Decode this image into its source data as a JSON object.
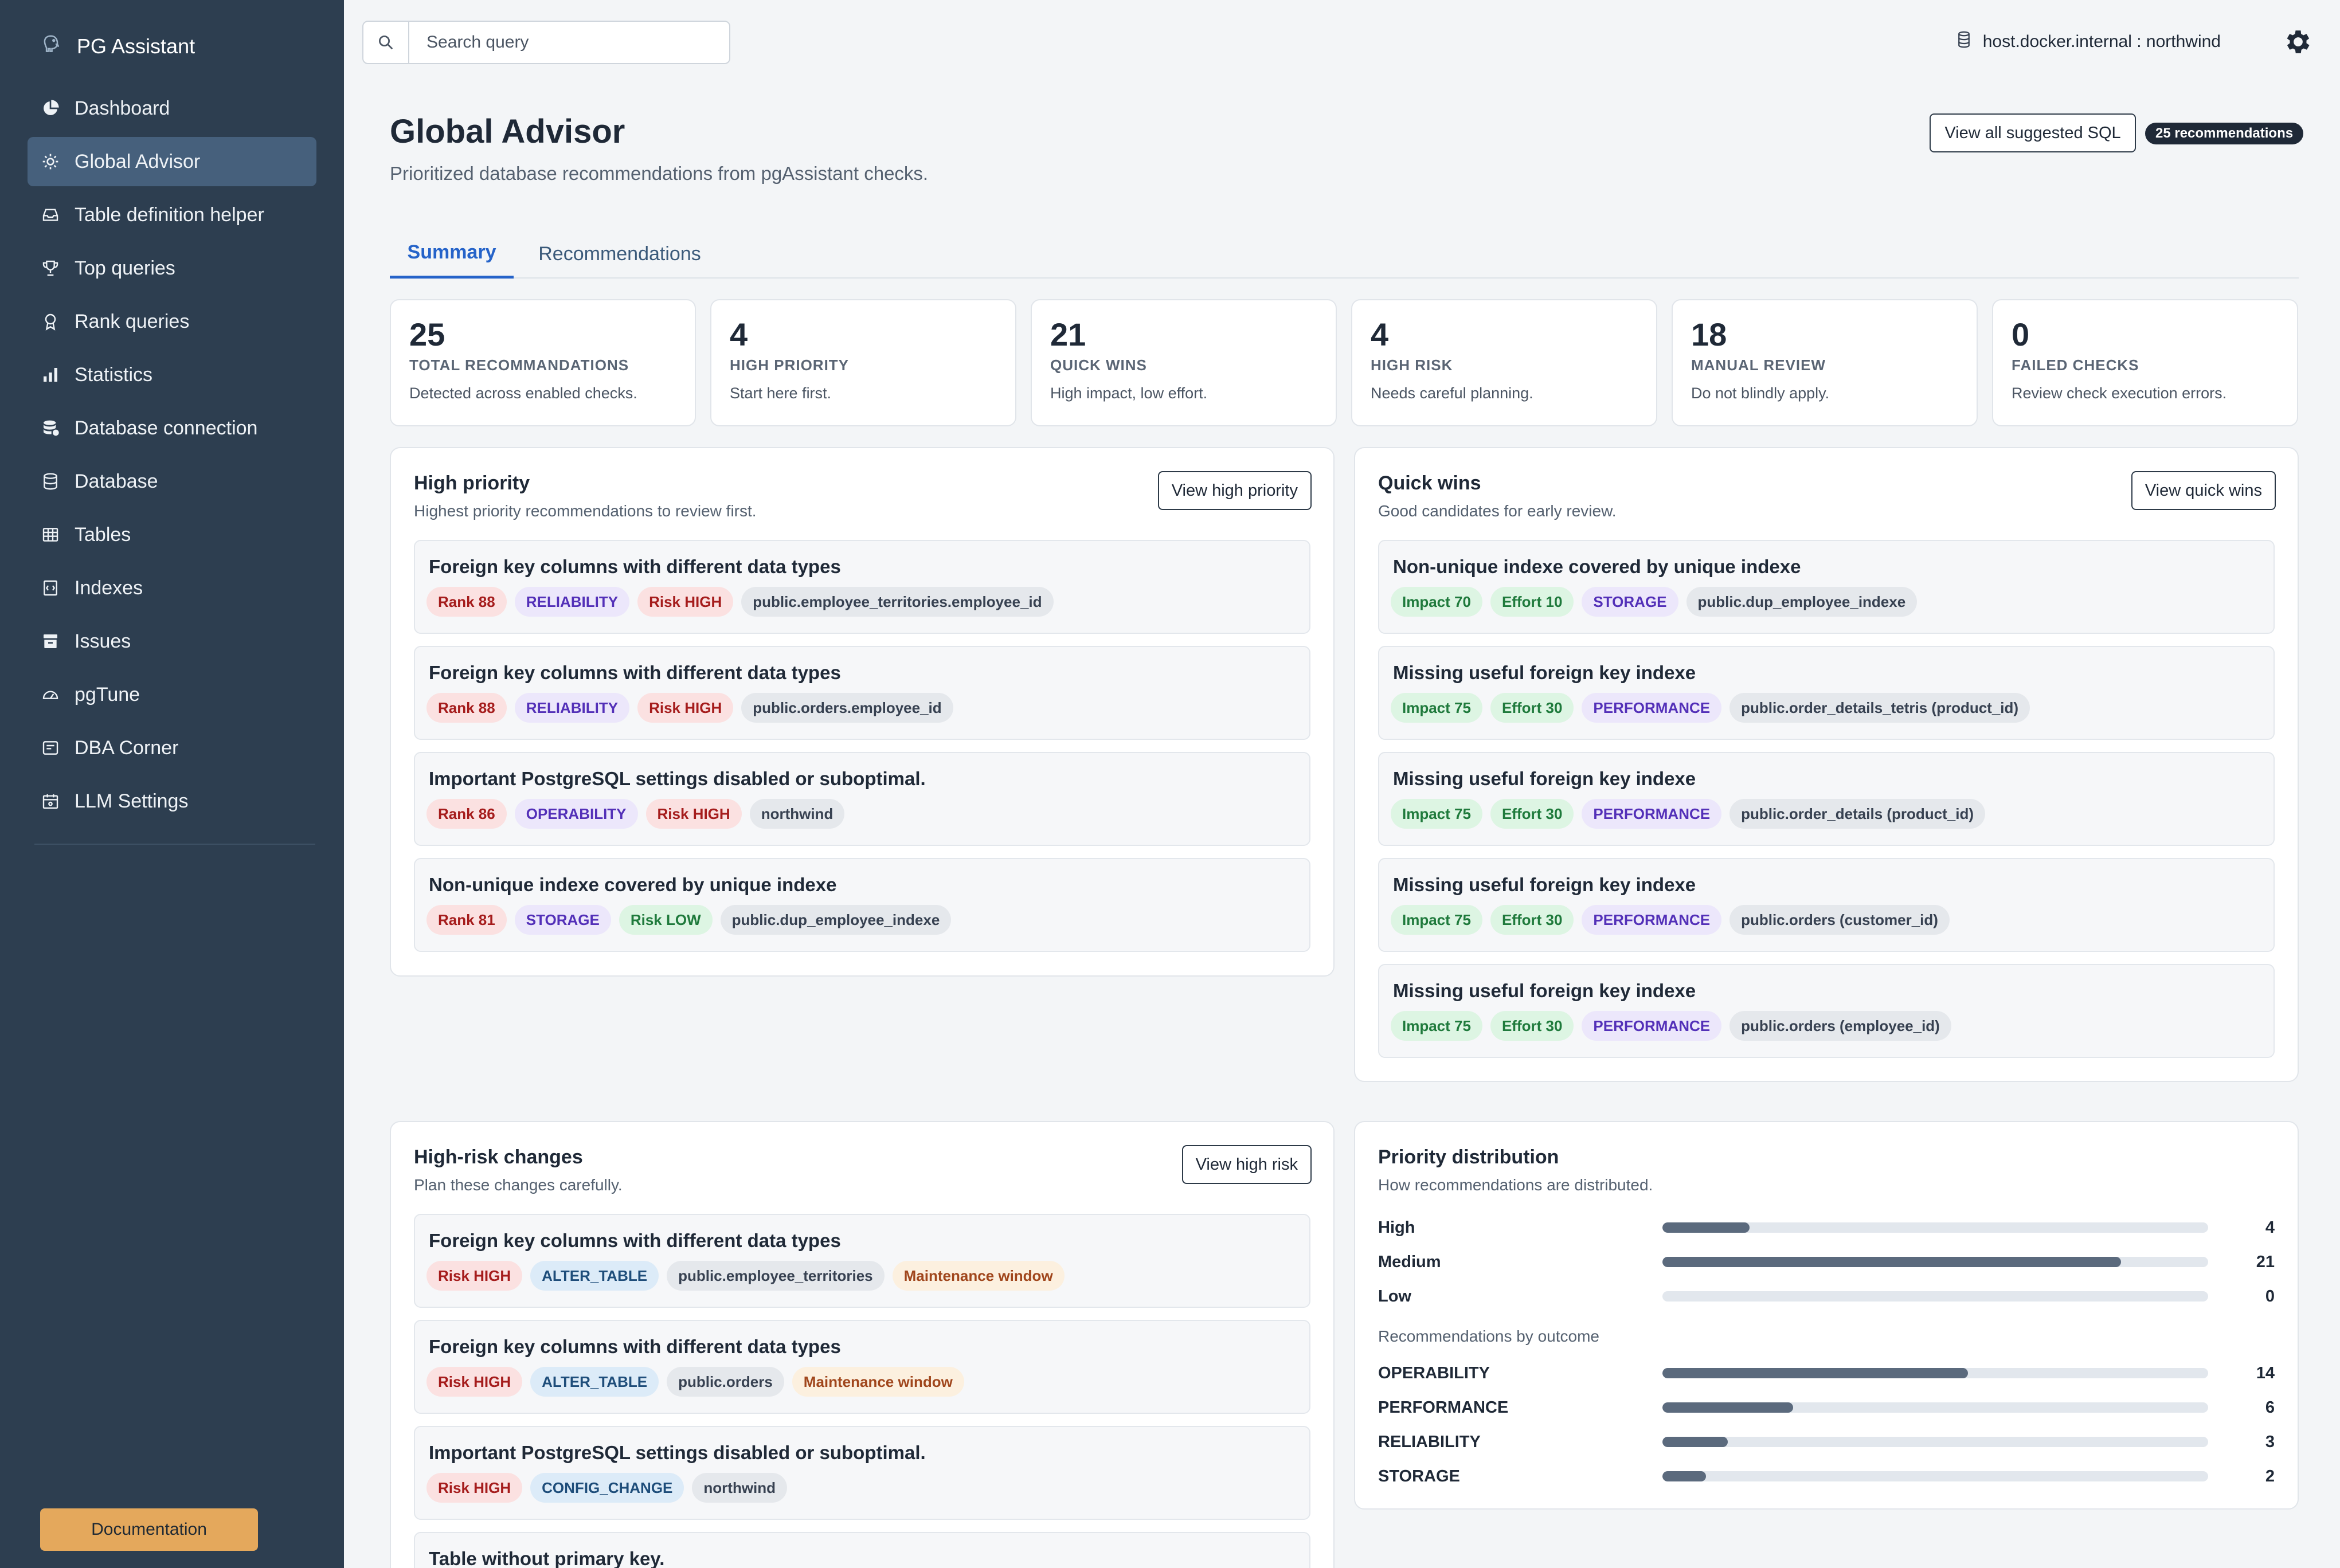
{
  "app": {
    "title": "PG Assistant"
  },
  "sidebar": {
    "items": [
      {
        "label": "Dashboard",
        "icon": "pie-chart-icon",
        "active": false
      },
      {
        "label": "Global Advisor",
        "icon": "sun-icon",
        "active": true
      },
      {
        "label": "Table definition helper",
        "icon": "inbox-icon",
        "active": false
      },
      {
        "label": "Top queries",
        "icon": "trophy-icon",
        "active": false
      },
      {
        "label": "Rank queries",
        "icon": "award-icon",
        "active": false
      },
      {
        "label": "Statistics",
        "icon": "bar-chart-icon",
        "active": false
      },
      {
        "label": "Database connection",
        "icon": "database-plug-icon",
        "active": false
      },
      {
        "label": "Database",
        "icon": "database-icon",
        "active": false
      },
      {
        "label": "Tables",
        "icon": "table-icon",
        "active": false
      },
      {
        "label": "Indexes",
        "icon": "index-icon",
        "active": false
      },
      {
        "label": "Issues",
        "icon": "archive-icon",
        "active": false
      },
      {
        "label": "pgTune",
        "icon": "gauge-icon",
        "active": false
      },
      {
        "label": "DBA Corner",
        "icon": "wrench-icon",
        "active": false
      },
      {
        "label": "LLM Settings",
        "icon": "calendar-cog-icon",
        "active": false
      }
    ],
    "documentation_label": "Documentation"
  },
  "topbar": {
    "search_placeholder": "Search query",
    "host": "host.docker.internal : northwind"
  },
  "header": {
    "title": "Global Advisor",
    "subtitle": "Prioritized database recommendations from pgAssistant checks.",
    "view_all_label": "View all suggested SQL",
    "badge": "25 recommendations"
  },
  "tabs": [
    {
      "label": "Summary",
      "active": true
    },
    {
      "label": "Recommendations",
      "active": false
    }
  ],
  "stats": [
    {
      "value": "25",
      "label": "TOTAL RECOMMANDATIONS",
      "desc": "Detected across enabled checks."
    },
    {
      "value": "4",
      "label": "HIGH PRIORITY",
      "desc": "Start here first."
    },
    {
      "value": "21",
      "label": "QUICK WINS",
      "desc": "High impact, low effort."
    },
    {
      "value": "4",
      "label": "HIGH RISK",
      "desc": "Needs careful planning."
    },
    {
      "value": "18",
      "label": "MANUAL REVIEW",
      "desc": "Do not blindly apply."
    },
    {
      "value": "0",
      "label": "FAILED CHECKS",
      "desc": "Review check execution errors."
    }
  ],
  "high_priority": {
    "title": "High priority",
    "subtitle": "Highest priority recommendations to review first.",
    "button": "View high priority",
    "items": [
      {
        "title": "Foreign key columns with different data types",
        "tags": [
          {
            "text": "Rank 88",
            "color": "red"
          },
          {
            "text": "RELIABILITY",
            "color": "purple"
          },
          {
            "text": "Risk HIGH",
            "color": "red"
          },
          {
            "text": "public.employee_territories.employee_id",
            "color": "gray"
          }
        ]
      },
      {
        "title": "Foreign key columns with different data types",
        "tags": [
          {
            "text": "Rank 88",
            "color": "red"
          },
          {
            "text": "RELIABILITY",
            "color": "purple"
          },
          {
            "text": "Risk HIGH",
            "color": "red"
          },
          {
            "text": "public.orders.employee_id",
            "color": "gray"
          }
        ]
      },
      {
        "title": "Important PostgreSQL settings disabled or suboptimal.",
        "tags": [
          {
            "text": "Rank 86",
            "color": "red"
          },
          {
            "text": "OPERABILITY",
            "color": "purple"
          },
          {
            "text": "Risk HIGH",
            "color": "red"
          },
          {
            "text": "northwind",
            "color": "gray"
          }
        ]
      },
      {
        "title": "Non-unique indexe covered by unique indexe",
        "tags": [
          {
            "text": "Rank 81",
            "color": "red"
          },
          {
            "text": "STORAGE",
            "color": "purple"
          },
          {
            "text": "Risk LOW",
            "color": "green"
          },
          {
            "text": "public.dup_employee_indexe",
            "color": "gray"
          }
        ]
      }
    ]
  },
  "quick_wins": {
    "title": "Quick wins",
    "subtitle": "Good candidates for early review.",
    "button": "View quick wins",
    "items": [
      {
        "title": "Non-unique indexe covered by unique indexe",
        "tags": [
          {
            "text": "Impact 70",
            "color": "green"
          },
          {
            "text": "Effort 10",
            "color": "green"
          },
          {
            "text": "STORAGE",
            "color": "purple"
          },
          {
            "text": "public.dup_employee_indexe",
            "color": "gray"
          }
        ]
      },
      {
        "title": "Missing useful foreign key indexe",
        "tags": [
          {
            "text": "Impact 75",
            "color": "green"
          },
          {
            "text": "Effort 30",
            "color": "green"
          },
          {
            "text": "PERFORMANCE",
            "color": "purple"
          },
          {
            "text": "public.order_details_tetris (product_id)",
            "color": "gray"
          }
        ]
      },
      {
        "title": "Missing useful foreign key indexe",
        "tags": [
          {
            "text": "Impact 75",
            "color": "green"
          },
          {
            "text": "Effort 30",
            "color": "green"
          },
          {
            "text": "PERFORMANCE",
            "color": "purple"
          },
          {
            "text": "public.order_details (product_id)",
            "color": "gray"
          }
        ]
      },
      {
        "title": "Missing useful foreign key indexe",
        "tags": [
          {
            "text": "Impact 75",
            "color": "green"
          },
          {
            "text": "Effort 30",
            "color": "green"
          },
          {
            "text": "PERFORMANCE",
            "color": "purple"
          },
          {
            "text": "public.orders (customer_id)",
            "color": "gray"
          }
        ]
      },
      {
        "title": "Missing useful foreign key indexe",
        "tags": [
          {
            "text": "Impact 75",
            "color": "green"
          },
          {
            "text": "Effort 30",
            "color": "green"
          },
          {
            "text": "PERFORMANCE",
            "color": "purple"
          },
          {
            "text": "public.orders (employee_id)",
            "color": "gray"
          }
        ]
      }
    ]
  },
  "high_risk": {
    "title": "High-risk changes",
    "subtitle": "Plan these changes carefully.",
    "button": "View high risk",
    "items": [
      {
        "title": "Foreign key columns with different data types",
        "tags": [
          {
            "text": "Risk HIGH",
            "color": "red"
          },
          {
            "text": "ALTER_TABLE",
            "color": "blue"
          },
          {
            "text": "public.employee_territories",
            "color": "gray"
          },
          {
            "text": "Maintenance window",
            "color": "orange"
          }
        ]
      },
      {
        "title": "Foreign key columns with different data types",
        "tags": [
          {
            "text": "Risk HIGH",
            "color": "red"
          },
          {
            "text": "ALTER_TABLE",
            "color": "blue"
          },
          {
            "text": "public.orders",
            "color": "gray"
          },
          {
            "text": "Maintenance window",
            "color": "orange"
          }
        ]
      },
      {
        "title": "Important PostgreSQL settings disabled or suboptimal.",
        "tags": [
          {
            "text": "Risk HIGH",
            "color": "red"
          },
          {
            "text": "CONFIG_CHANGE",
            "color": "blue"
          },
          {
            "text": "northwind",
            "color": "gray"
          }
        ]
      },
      {
        "title": "Table without primary key.",
        "tags": []
      }
    ]
  },
  "distribution": {
    "title": "Priority distribution",
    "subtitle": "How recommendations are distributed.",
    "priority": [
      {
        "label": "High",
        "value": 4,
        "fraction": 0.16
      },
      {
        "label": "Medium",
        "value": 21,
        "fraction": 0.84
      },
      {
        "label": "Low",
        "value": 0,
        "fraction": 0
      }
    ],
    "outcome_caption": "Recommendations by outcome",
    "outcome": [
      {
        "label": "OPERABILITY",
        "value": 14,
        "fraction": 0.56
      },
      {
        "label": "PERFORMANCE",
        "value": 6,
        "fraction": 0.24
      },
      {
        "label": "RELIABILITY",
        "value": 3,
        "fraction": 0.12
      },
      {
        "label": "STORAGE",
        "value": 2,
        "fraction": 0.08
      }
    ]
  }
}
